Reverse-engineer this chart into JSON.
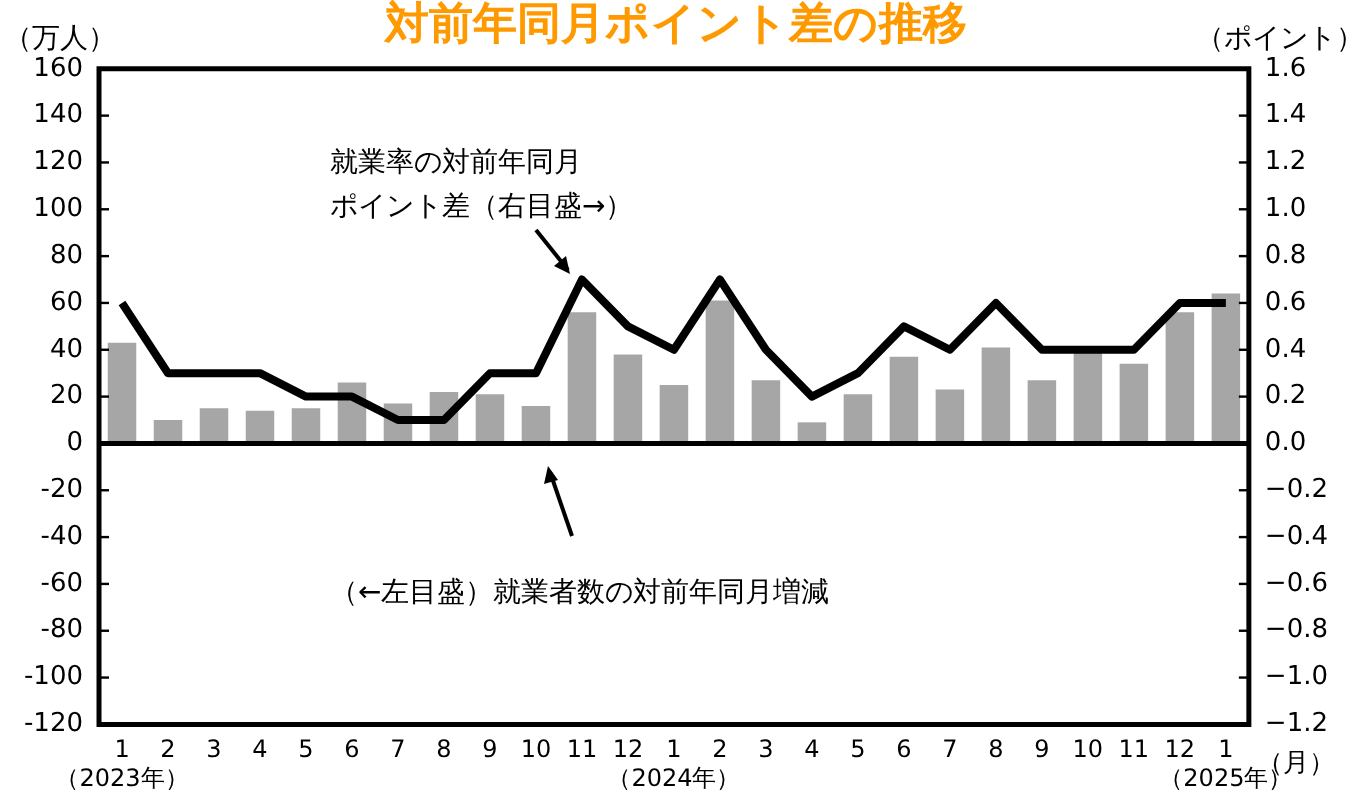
{
  "chart_data": {
    "type": "bar",
    "title": "対前年同月ポイント差の推移",
    "ylabel": "（万人）",
    "y2label": "（ポイント）",
    "categories": [
      "1\n（2023年）",
      "2",
      "3",
      "4",
      "5",
      "6",
      "7",
      "8",
      "9",
      "10",
      "11",
      "12",
      "1\n（2024年）",
      "2",
      "3",
      "4",
      "5",
      "6",
      "7",
      "8",
      "9",
      "10",
      "11",
      "12",
      "1\n（2025年）"
    ],
    "series": [
      {
        "color": "#a6a6a6",
        "values": [
          43,
          10,
          15,
          14,
          15,
          26,
          17,
          22,
          21,
          16,
          56,
          38,
          25,
          61,
          27,
          9,
          21,
          37,
          23,
          41,
          27,
          41,
          34,
          56,
          64
        ]
      },
      {
        "type": "line",
        "axis": "y2",
        "color": "#000000",
        "values": [
          0.6,
          0.3,
          0.3,
          0.3,
          0.2,
          0.2,
          0.1,
          0.1,
          0.3,
          0.3,
          0.7,
          0.5,
          0.4,
          0.7,
          0.4,
          0.2,
          0.3,
          0.5,
          0.4,
          0.6,
          0.4,
          0.4,
          0.4,
          0.6,
          0.6
        ]
      }
    ],
    "ylim": [
      -120,
      160
    ],
    "yticks": [
      -120,
      -100,
      -80,
      -60,
      -40,
      -20,
      0,
      20,
      40,
      60,
      80,
      100,
      120,
      140,
      160
    ],
    "y2lim": [
      -1.2,
      1.6
    ],
    "y2ticks": [
      {
        "value": -1.2,
        "label": "−1.2"
      },
      {
        "value": -1.0,
        "label": "−1.0"
      },
      {
        "value": -0.8,
        "label": "−0.8"
      },
      {
        "value": -0.6,
        "label": "−0.6"
      },
      {
        "value": -0.4,
        "label": "−0.4"
      },
      {
        "value": -0.2,
        "label": "−0.2"
      },
      {
        "value": 0,
        "label": "0.0"
      },
      {
        "value": 0.2,
        "label": "0.2"
      },
      {
        "value": 0.4,
        "label": "0.4"
      },
      {
        "value": 0.6,
        "label": "0.6"
      },
      {
        "value": 0.8,
        "label": "0.8"
      },
      {
        "value": 1.0,
        "label": "1.0"
      },
      {
        "value": 1.2,
        "label": "1.2"
      },
      {
        "value": 1.4,
        "label": "1.4"
      },
      {
        "value": 1.6,
        "label": "1.6"
      }
    ],
    "ref_lines": [
      {
        "axis": "y",
        "value": 0,
        "color": "#000000"
      }
    ],
    "annotations": [
      "就業率の対前年同月ポイント差（右目盛→）",
      "（←左目盛）就業者数の対前年同月増減",
      "（月）"
    ],
    "grid": false,
    "legend": false,
    "marker": "none",
    "line_style": "solid"
  }
}
